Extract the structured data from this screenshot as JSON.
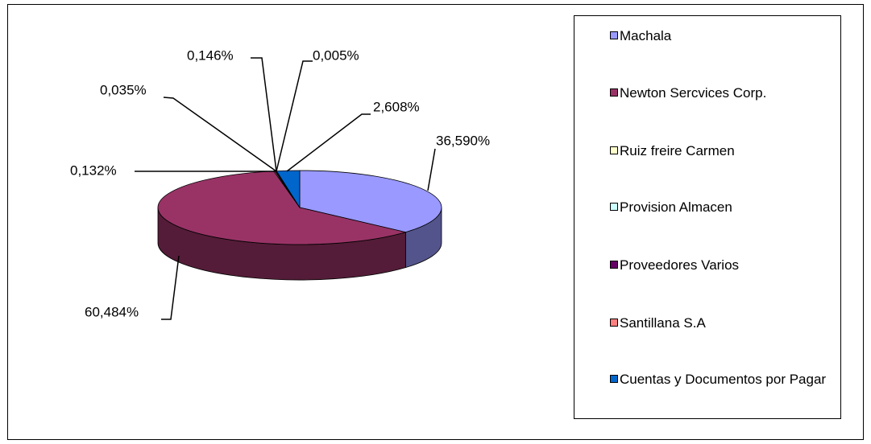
{
  "chart_data": {
    "type": "pie3d",
    "categories": [
      "Machala",
      "Newton Sercvices Corp.",
      "Ruiz freire Carmen",
      "Provision Almacen",
      "Proveedores Varios",
      "Santillana S.A",
      "Cuentas y Documentos por Pagar"
    ],
    "values": [
      36.59,
      60.484,
      0.132,
      0.035,
      0.146,
      0.005,
      2.608
    ],
    "value_labels": [
      "36,590%",
      "60,484%",
      "0,132%",
      "0,035%",
      "0,146%",
      "0,005%",
      "2,608%"
    ],
    "colors": [
      "#9999ff",
      "#993366",
      "#ffffcc",
      "#ccffff",
      "#660066",
      "#ff8080",
      "#0066cc"
    ],
    "legend": "right"
  }
}
